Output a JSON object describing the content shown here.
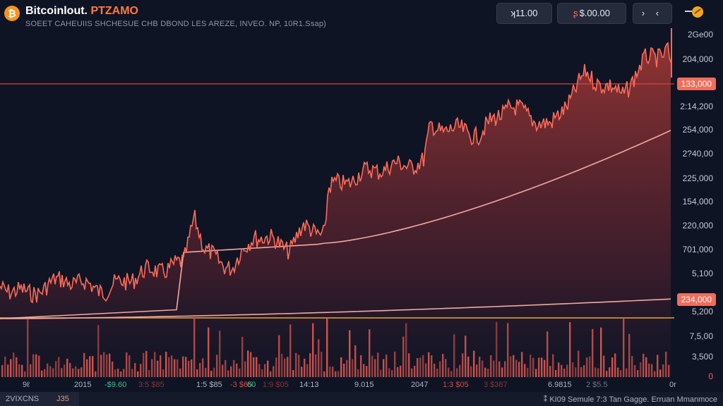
{
  "header": {
    "title_main": "Bitcoinlout.",
    "title_accent": "PTZAMO",
    "logo_glyph": "₿",
    "subtitle": "SOEET CAHEUIIS SHCHESUE CHB DBOND LES AREZE, INVEO. NP,  10R1.Ssap)",
    "pill_1": "ʞ11.00",
    "pill_2_icon": "ʂ",
    "pill_2": "$.00.00",
    "pill_3": "› ‹"
  },
  "y_axis": {
    "ticks": [
      "2Ge00",
      "204,000",
      "2:14,200",
      "254,000",
      "2?40,00",
      "225,000",
      "154,000",
      "220,000",
      "701,000",
      "5,100",
      "5,200",
      "7,5,00",
      "3,500"
    ],
    "bottom_label": "0"
  },
  "price_tags": {
    "upper": "133,000",
    "lower": "234,000"
  },
  "x_axis": {
    "labels": [
      "9ℓ",
      "2015",
      "1:5 $85",
      "14:13",
      "9.015",
      "2047",
      "6.9815",
      "0r"
    ],
    "green": [
      "-$9.60",
      "60"
    ],
    "red": [
      "3:5 $85",
      "-3 $65",
      "1:9 $05",
      "1:3 $05",
      "3 $387"
    ],
    "gray": [
      "2 $5.5"
    ]
  },
  "footer": {
    "tab_left": "2VIXCNS",
    "tab_right": "J35",
    "right_text": "⁑ KI09 Semule  7:3 Tan Gagge.   Erruan Mmanmoce"
  },
  "colors": {
    "background": "#0f1424",
    "price_line": "#ff6b57",
    "area_top": "#a83a36",
    "volume": "#e0574f",
    "ma_line": "#f4a7a0",
    "baseline": "#e8a23c",
    "level_line": "#d9433a",
    "accent_green": "#35c28c"
  }
}
